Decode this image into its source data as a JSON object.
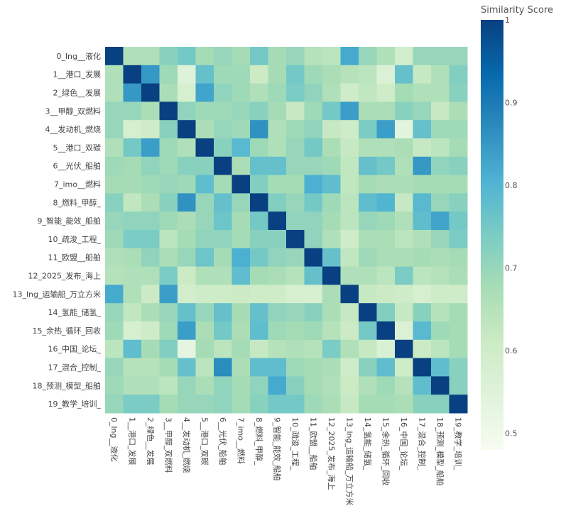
{
  "chart_data": {
    "type": "heatmap",
    "title": "",
    "colorbar": {
      "title": "Similarity Score",
      "range": [
        0.48,
        1.0
      ],
      "ticks": [
        0.5,
        0.6,
        0.7,
        0.8,
        0.9,
        1
      ],
      "tick_labels": [
        "0.5",
        "0.6",
        "0.7",
        "0.8",
        "0.9",
        "1"
      ],
      "colorscale": [
        "#f7fcf0",
        "#e0f3db",
        "#ccebc5",
        "#a8ddb5",
        "#7bccc4",
        "#4eb3d3",
        "#2b8cbe",
        "#0868ac",
        "#084081"
      ]
    },
    "labels": [
      "0_lng__液化",
      "1__港口_发展",
      "2_绿色__发展",
      "3__甲醇_双燃料",
      "4__发动机_燃烧",
      "5__港口_双碳",
      "6__光伏_船舶",
      "7_imo__燃料",
      "8_燃料_甲醇_",
      "9_智能_能效_船舶",
      "10_疏浚_工程_",
      "11_欧盟__船舶",
      "12_2025_发布_海上",
      "13_lng_运输船_万立方米",
      "14_氢能_储氢_",
      "15_余热_循环_回收",
      "16_中国_论坛_",
      "17_混合_控制_",
      "18_预测_模型_船舶",
      "19_教学_培训_"
    ],
    "z": [
      [
        1.0,
        0.66,
        0.66,
        0.72,
        0.75,
        0.68,
        0.7,
        0.68,
        0.75,
        0.68,
        0.7,
        0.65,
        0.64,
        0.82,
        0.7,
        0.66,
        0.59,
        0.7,
        0.7,
        0.7
      ],
      [
        0.66,
        1.0,
        0.85,
        0.69,
        0.55,
        0.77,
        0.69,
        0.69,
        0.61,
        0.68,
        0.75,
        0.69,
        0.67,
        0.65,
        0.64,
        0.56,
        0.77,
        0.62,
        0.66,
        0.73
      ],
      [
        0.66,
        0.85,
        1.0,
        0.67,
        0.58,
        0.83,
        0.71,
        0.69,
        0.66,
        0.69,
        0.74,
        0.71,
        0.66,
        0.6,
        0.63,
        0.6,
        0.68,
        0.66,
        0.66,
        0.72
      ],
      [
        0.7,
        0.7,
        0.67,
        1.0,
        0.71,
        0.69,
        0.69,
        0.7,
        0.72,
        0.68,
        0.62,
        0.69,
        0.75,
        0.84,
        0.67,
        0.67,
        0.72,
        0.7,
        0.62,
        0.67
      ],
      [
        0.7,
        0.58,
        0.6,
        0.72,
        1.0,
        0.67,
        0.7,
        0.69,
        0.86,
        0.66,
        0.69,
        0.71,
        0.62,
        0.6,
        0.74,
        0.84,
        0.54,
        0.77,
        0.69,
        0.69
      ],
      [
        0.66,
        0.75,
        0.84,
        0.69,
        0.66,
        1.0,
        0.72,
        0.79,
        0.69,
        0.66,
        0.7,
        0.75,
        0.67,
        0.62,
        0.66,
        0.66,
        0.67,
        0.62,
        0.64,
        0.68
      ],
      [
        0.69,
        0.68,
        0.71,
        0.69,
        0.72,
        0.72,
        1.0,
        0.67,
        0.77,
        0.77,
        0.7,
        0.7,
        0.69,
        0.63,
        0.77,
        0.75,
        0.66,
        0.85,
        0.71,
        0.72
      ],
      [
        0.68,
        0.68,
        0.69,
        0.7,
        0.69,
        0.78,
        0.68,
        1.0,
        0.73,
        0.68,
        0.68,
        0.81,
        0.78,
        0.63,
        0.68,
        0.67,
        0.67,
        0.68,
        0.68,
        0.68
      ],
      [
        0.72,
        0.63,
        0.67,
        0.72,
        0.86,
        0.7,
        0.77,
        0.7,
        1.0,
        0.73,
        0.7,
        0.75,
        0.69,
        0.64,
        0.78,
        0.8,
        0.62,
        0.79,
        0.7,
        0.72
      ],
      [
        0.7,
        0.71,
        0.71,
        0.69,
        0.67,
        0.7,
        0.76,
        0.68,
        0.75,
        1.0,
        0.71,
        0.71,
        0.68,
        0.64,
        0.7,
        0.69,
        0.66,
        0.78,
        0.83,
        0.75
      ],
      [
        0.69,
        0.74,
        0.74,
        0.64,
        0.68,
        0.71,
        0.71,
        0.68,
        0.72,
        0.72,
        1.0,
        0.71,
        0.66,
        0.6,
        0.67,
        0.67,
        0.64,
        0.66,
        0.7,
        0.74
      ],
      [
        0.66,
        0.67,
        0.71,
        0.67,
        0.7,
        0.76,
        0.68,
        0.81,
        0.75,
        0.71,
        0.7,
        1.0,
        0.77,
        0.63,
        0.69,
        0.67,
        0.67,
        0.68,
        0.67,
        0.68
      ],
      [
        0.65,
        0.66,
        0.66,
        0.74,
        0.61,
        0.66,
        0.66,
        0.78,
        0.68,
        0.67,
        0.65,
        0.77,
        1.0,
        0.66,
        0.66,
        0.64,
        0.74,
        0.64,
        0.65,
        0.67
      ],
      [
        0.82,
        0.66,
        0.61,
        0.84,
        0.59,
        0.6,
        0.6,
        0.61,
        0.6,
        0.6,
        0.58,
        0.58,
        0.67,
        1.0,
        0.62,
        0.61,
        0.6,
        0.58,
        0.6,
        0.6
      ],
      [
        0.7,
        0.63,
        0.67,
        0.7,
        0.77,
        0.7,
        0.77,
        0.68,
        0.77,
        0.71,
        0.7,
        0.72,
        0.67,
        0.62,
        1.0,
        0.73,
        0.62,
        0.72,
        0.65,
        0.68
      ],
      [
        0.69,
        0.58,
        0.6,
        0.69,
        0.84,
        0.67,
        0.75,
        0.67,
        0.78,
        0.69,
        0.68,
        0.69,
        0.65,
        0.61,
        0.75,
        1.0,
        0.56,
        0.79,
        0.69,
        0.68
      ],
      [
        0.64,
        0.78,
        0.68,
        0.73,
        0.53,
        0.68,
        0.64,
        0.68,
        0.62,
        0.65,
        0.66,
        0.65,
        0.74,
        0.66,
        0.62,
        0.57,
        1.0,
        0.61,
        0.64,
        0.68
      ],
      [
        0.7,
        0.65,
        0.65,
        0.68,
        0.77,
        0.64,
        0.87,
        0.67,
        0.78,
        0.78,
        0.69,
        0.68,
        0.67,
        0.6,
        0.72,
        0.78,
        0.6,
        1.0,
        0.78,
        0.72
      ],
      [
        0.69,
        0.66,
        0.66,
        0.64,
        0.7,
        0.67,
        0.71,
        0.68,
        0.71,
        0.82,
        0.72,
        0.68,
        0.66,
        0.61,
        0.66,
        0.69,
        0.65,
        0.78,
        1.0,
        0.72
      ],
      [
        0.7,
        0.74,
        0.74,
        0.68,
        0.7,
        0.7,
        0.71,
        0.68,
        0.72,
        0.75,
        0.75,
        0.69,
        0.67,
        0.62,
        0.68,
        0.68,
        0.67,
        0.72,
        0.72,
        1.0
      ]
    ]
  }
}
